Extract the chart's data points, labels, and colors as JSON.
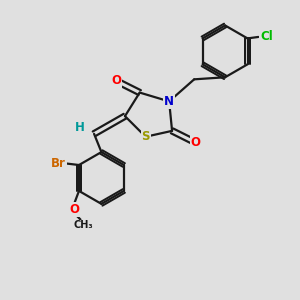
{
  "background_color": "#e0e0e0",
  "bond_color": "#1a1a1a",
  "bond_lw": 1.6,
  "atom_colors": {
    "O": "#ff0000",
    "N": "#0000cc",
    "S": "#999900",
    "Br": "#cc6600",
    "Cl": "#00bb00",
    "H": "#009999",
    "C": "#1a1a1a"
  },
  "fs": 8.5
}
